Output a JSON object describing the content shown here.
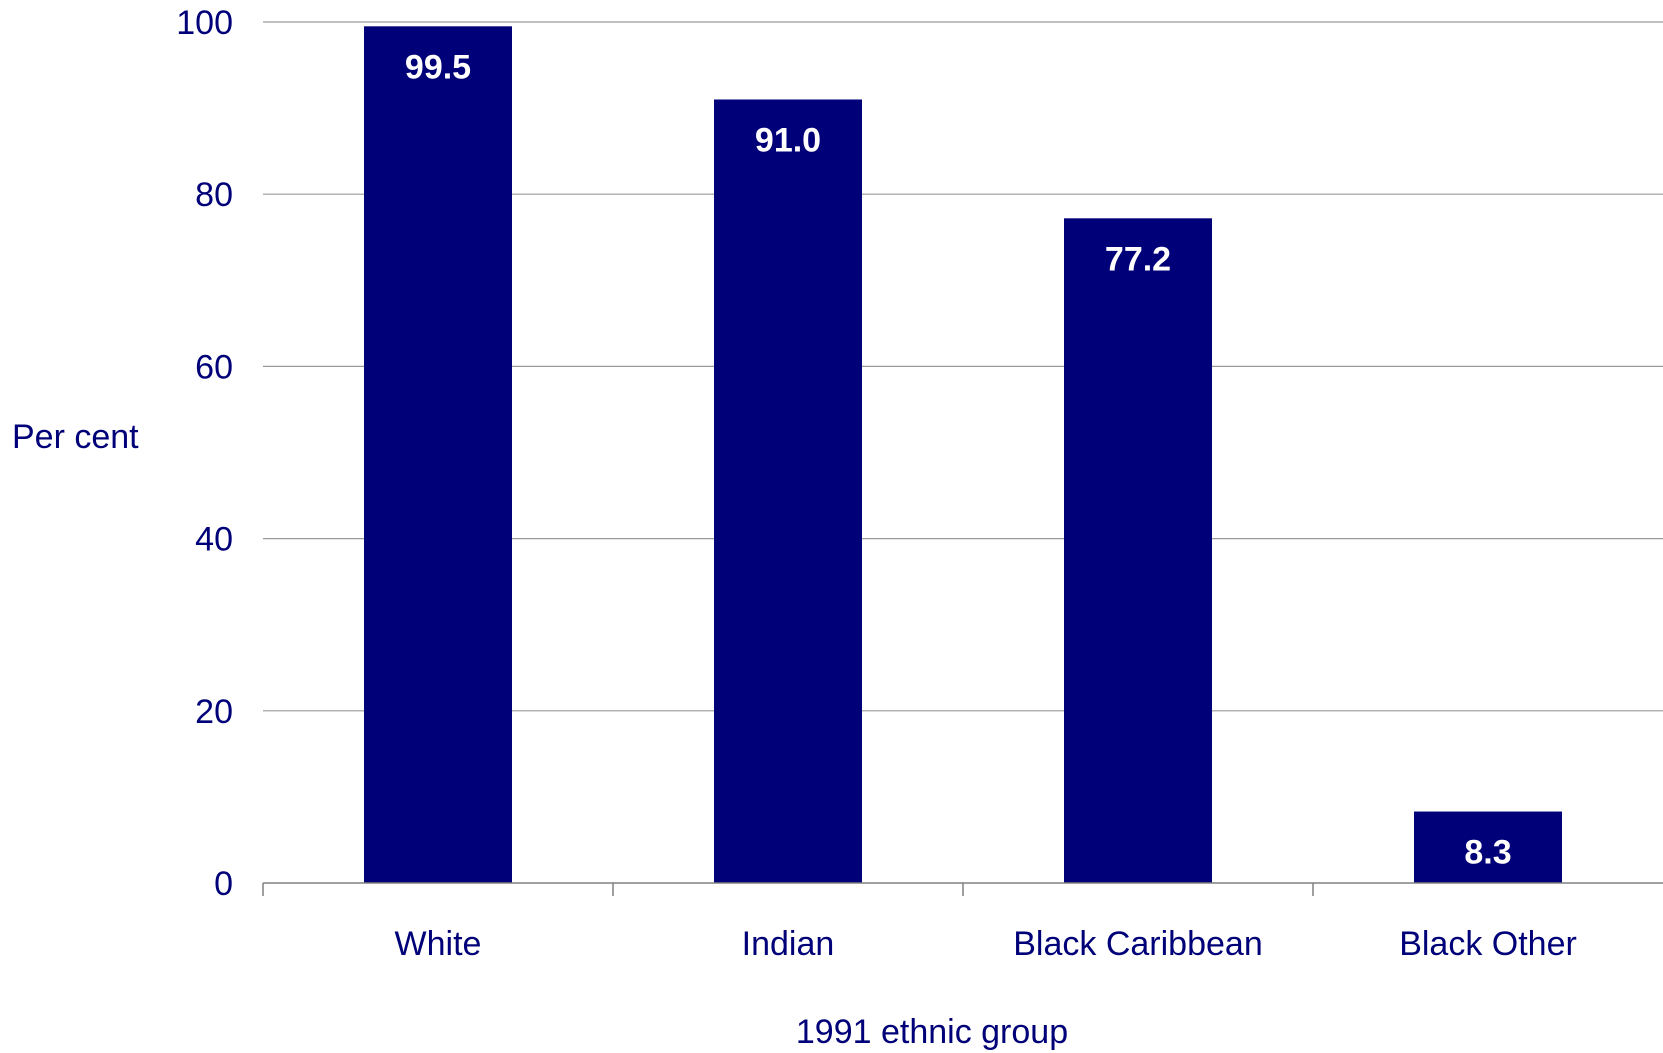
{
  "colors": {
    "bar": "#000078",
    "text": "#000078",
    "data_label": "#ffffff",
    "grid": "#9a9a9a",
    "axis": "#808080"
  },
  "chart_data": {
    "type": "bar",
    "categories": [
      "White",
      "Indian",
      "Black Caribbean",
      "Black Other"
    ],
    "values": [
      99.5,
      91.0,
      77.2,
      8.3
    ],
    "data_labels": [
      "99.5",
      "91.0",
      "77.2",
      "8.3"
    ],
    "title": "",
    "xlabel": "1991 ethnic group",
    "ylabel": "Per cent",
    "ylim": [
      0,
      100
    ],
    "yticks": [
      0,
      20,
      40,
      60,
      80,
      100
    ],
    "grid": true,
    "legend": "none"
  }
}
